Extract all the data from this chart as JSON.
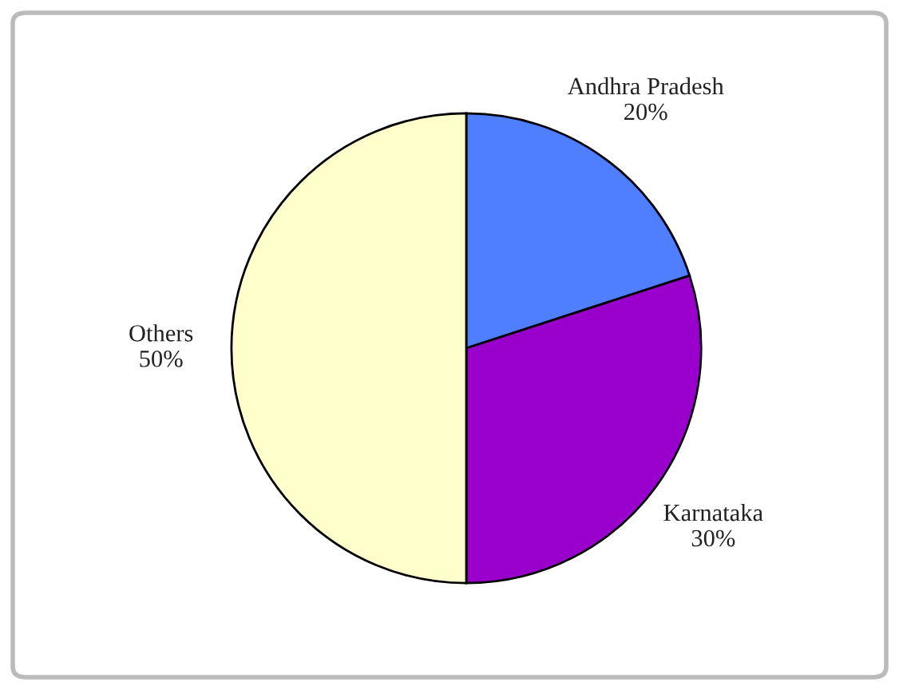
{
  "chart_data": {
    "type": "pie",
    "categories": [
      "Andhra Pradesh",
      "Karnataka",
      "Others"
    ],
    "values": [
      20,
      30,
      50
    ],
    "value_labels": [
      "20%",
      "30%",
      "50%"
    ],
    "colors": [
      "#4f7fff",
      "#9900cc",
      "#ffffcc"
    ]
  }
}
